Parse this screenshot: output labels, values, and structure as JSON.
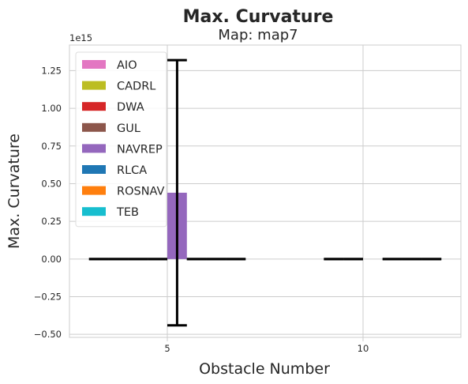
{
  "chart_data": {
    "type": "bar",
    "title": "Max. Curvature",
    "subtitle": "Map: map7",
    "xlabel": "Obstacle Number",
    "ylabel": "Max. Curvature",
    "y_offset_label": "1e15",
    "ylim": [
      -0.52,
      1.42
    ],
    "yticks": [
      -0.5,
      -0.25,
      0.0,
      0.25,
      0.5,
      0.75,
      1.0,
      1.25
    ],
    "ytick_labels": [
      "−0.50",
      "−0.25",
      "0.00",
      "0.25",
      "0.50",
      "0.75",
      "1.00",
      "1.25"
    ],
    "categories": [
      "5",
      "10"
    ],
    "grid": true,
    "legend_position": "top-left",
    "series": [
      {
        "name": "AIO",
        "color": "#e377c2",
        "values": [
          0.0,
          null
        ],
        "err": [
          0.0,
          null
        ]
      },
      {
        "name": "CADRL",
        "color": "#bcbd22",
        "values": [
          0.0,
          null
        ],
        "err": [
          0.0,
          null
        ]
      },
      {
        "name": "DWA",
        "color": "#d62728",
        "values": [
          0.0,
          0.0
        ],
        "err": [
          0.0,
          0.0
        ]
      },
      {
        "name": "GUL",
        "color": "#8c564b",
        "values": [
          0.0,
          0.0
        ],
        "err": [
          0.0,
          0.0
        ]
      },
      {
        "name": "NAVREP",
        "color": "#9467bd",
        "values": [
          0.44,
          null
        ],
        "err": [
          0.88,
          null
        ]
      },
      {
        "name": "RLCA",
        "color": "#1f77b4",
        "values": [
          0.0,
          0.0
        ],
        "err": [
          0.0,
          0.0
        ]
      },
      {
        "name": "ROSNAV",
        "color": "#ff7f0e",
        "values": [
          0.0,
          0.0
        ],
        "err": [
          0.0,
          0.0
        ]
      },
      {
        "name": "TEB",
        "color": "#17becf",
        "values": [
          0.0,
          0.0
        ],
        "err": [
          0.0,
          0.0
        ]
      }
    ]
  }
}
